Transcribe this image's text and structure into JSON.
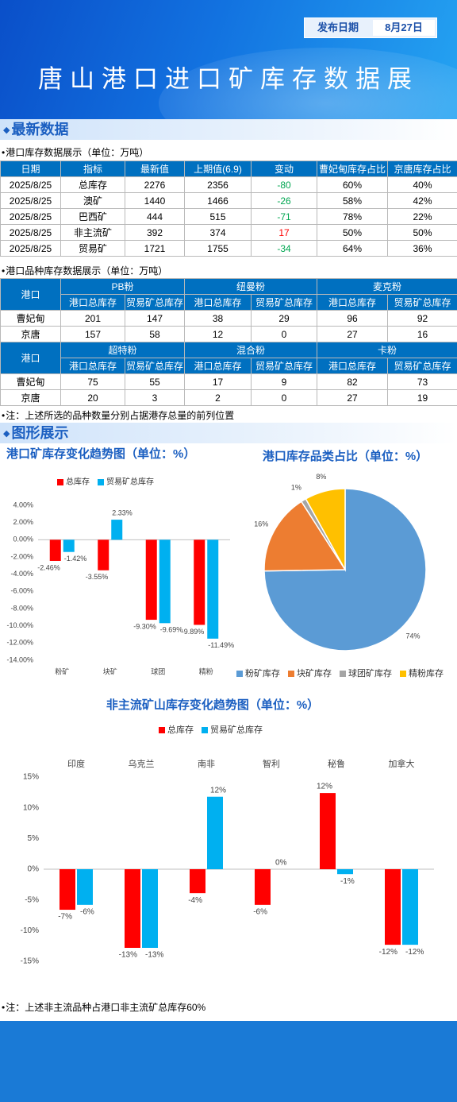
{
  "header": {
    "date_label": "发布日期",
    "date": "8月27日",
    "title": "唐山港口进口矿库存数据展"
  },
  "sections": [
    "最新数据",
    "图形展示"
  ],
  "stock_table": {
    "caption": "港口库存数据展示（单位：万吨）",
    "up_color": "#ff0000",
    "down_color": "#00a651",
    "columns": [
      "日期",
      "指标",
      "最新值",
      "上期值(6.9)",
      "变动",
      "曹妃甸库存占比",
      "京唐库存占比"
    ],
    "rows": [
      [
        "2025/8/25",
        "总库存",
        2276,
        2356,
        -80,
        "60%",
        "40%"
      ],
      [
        "2025/8/25",
        "澳矿",
        1440,
        1466,
        -26,
        "58%",
        "42%"
      ],
      [
        "2025/8/25",
        "巴西矿",
        444,
        515,
        -71,
        "78%",
        "22%"
      ],
      [
        "2025/8/25",
        "非主流矿",
        392,
        374,
        17,
        "50%",
        "50%"
      ],
      [
        "2025/8/25",
        "贸易矿",
        1721,
        1755,
        -34,
        "64%",
        "36%"
      ]
    ]
  },
  "variety_table": {
    "caption": "港口品种库存数据展示（单位：万吨）",
    "blocks": [
      {
        "corner": "港口",
        "groups": [
          {
            "name": "PB粉",
            "columns": [
              "港口总库存",
              "贸易矿总库存"
            ]
          },
          {
            "name": "纽曼粉",
            "columns": [
              "港口总库存",
              "贸易矿总库存"
            ]
          },
          {
            "name": "麦克粉",
            "columns": [
              "港口总库存",
              "贸易矿总库存"
            ]
          }
        ],
        "rows": [
          {
            "port": "曹妃甸",
            "values": [
              201,
              147,
              38,
              29,
              96,
              92
            ]
          },
          {
            "port": "京唐",
            "values": [
              157,
              58,
              12,
              0,
              27,
              16
            ]
          }
        ]
      },
      {
        "corner": "港口",
        "groups": [
          {
            "name": "超特粉",
            "columns": [
              "港口总库存",
              "贸易矿总库存"
            ]
          },
          {
            "name": "混合粉",
            "columns": [
              "港口总库存",
              "贸易矿总库存"
            ]
          },
          {
            "name": "卡粉",
            "columns": [
              "港口总库存",
              "贸易矿总库存"
            ]
          }
        ],
        "rows": [
          {
            "port": "曹妃甸",
            "values": [
              75,
              55,
              17,
              9,
              82,
              73
            ]
          },
          {
            "port": "京唐",
            "values": [
              20,
              3,
              2,
              0,
              27,
              19
            ]
          }
        ]
      }
    ]
  },
  "notes": [
    "注：上述所选的品种数量分别占据港存总量的前列位置",
    "注：上述非主流品种占港口非主流矿总库存60%"
  ],
  "chart_data": [
    {
      "type": "bar",
      "title": "港口矿库存变化趋势图（单位：%）",
      "categories": [
        "粉矿",
        "块矿",
        "球团",
        "精粉"
      ],
      "category_axis": "bottom",
      "grid": false,
      "legend": "top",
      "series": [
        {
          "name": "总库存",
          "color": "#ff0000",
          "values": [
            -2.46,
            -3.55,
            -9.3,
            -9.89
          ],
          "value_labels": [
            "-2.46%",
            "-3.55%",
            "-9.30%",
            "-9.89%"
          ]
        },
        {
          "name": "贸易矿总库存",
          "color": "#00b0f0",
          "values": [
            -1.42,
            2.33,
            -9.69,
            -11.49
          ],
          "value_labels": [
            "-1.42%",
            "2.33%",
            "-9.69%",
            "-11.49%"
          ]
        }
      ],
      "ylim": [
        -14,
        4
      ],
      "yticks": [
        {
          "value": 4,
          "label": "4.00%"
        },
        {
          "value": 2,
          "label": "2.00%"
        },
        {
          "value": 0,
          "label": "0.00%"
        },
        {
          "value": -2,
          "label": "-2.00%"
        },
        {
          "value": -4,
          "label": "-4.00%"
        },
        {
          "value": -6,
          "label": "-6.00%"
        },
        {
          "value": -8,
          "label": "-8.00%"
        },
        {
          "value": -10,
          "label": "-10.00%"
        },
        {
          "value": -12,
          "label": "-12.00%"
        },
        {
          "value": -14,
          "label": "-14.00%"
        }
      ]
    },
    {
      "type": "pie",
      "title": "港口库存品类占比（单位：%）",
      "categories": [
        "粉矿库存",
        "块矿库存",
        "球团矿库存",
        "精粉库存"
      ],
      "values": [
        74,
        16,
        1,
        8
      ],
      "value_labels": [
        "74%",
        "16%",
        "1%",
        "8%"
      ],
      "colors": [
        "#5b9bd5",
        "#ed7d31",
        "#a5a5a5",
        "#ffc000"
      ],
      "legend": "bottom"
    },
    {
      "type": "bar",
      "title": "非主流矿山库存变化趋势图（单位：%）",
      "categories": [
        "印度",
        "乌克兰",
        "南非",
        "智利",
        "秘鲁",
        "加拿大"
      ],
      "category_axis": "top",
      "grid": false,
      "legend": "top",
      "series": [
        {
          "name": "总库存",
          "color": "#ff0000",
          "values": [
            -6.6,
            -12.8,
            -3.9,
            -5.8,
            12.4,
            -12.3
          ],
          "value_labels": [
            "-7%",
            "-13%",
            "-4%",
            "-6%",
            "12%",
            "-12%"
          ]
        },
        {
          "name": "贸易矿总库存",
          "color": "#00b0f0",
          "values": [
            -5.8,
            -12.8,
            11.8,
            0,
            -0.8,
            -12.3
          ],
          "value_labels": [
            "-6%",
            "-13%",
            "12%",
            "0%",
            "-1%",
            "-12%"
          ]
        }
      ],
      "ylim": [
        -15,
        15
      ],
      "yticks": [
        {
          "value": 15,
          "label": "15%"
        },
        {
          "value": 10,
          "label": "10%"
        },
        {
          "value": 5,
          "label": "5%"
        },
        {
          "value": 0,
          "label": "0%"
        },
        {
          "value": -5,
          "label": "-5%"
        },
        {
          "value": -10,
          "label": "-10%"
        },
        {
          "value": -15,
          "label": "-15%"
        }
      ]
    }
  ]
}
